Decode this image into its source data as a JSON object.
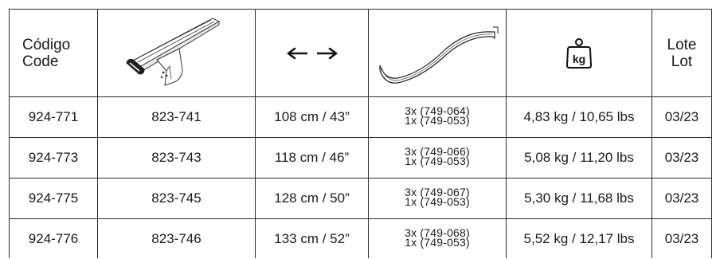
{
  "headers": {
    "code_line1": "Código",
    "code_line2": "Code",
    "bar_icon": "roof-bar-icon",
    "length_icon": "double-arrow-icon",
    "profile_icon": "rubber-profile-strip-icon",
    "weight_icon": "kg-weight-icon",
    "weight_unit": "kg",
    "lot_line1": "Lote",
    "lot_line2": "Lot"
  },
  "rows": [
    {
      "code": "924-771",
      "bar": "823-741",
      "length": "108 cm / 43”",
      "profile1": "3x (749-064)",
      "profile2": "1x (749-053)",
      "weight": "4,83 kg / 10,65 lbs",
      "lot": "03/23"
    },
    {
      "code": "924-773",
      "bar": "823-743",
      "length": "118 cm / 46”",
      "profile1": "3x (749-066)",
      "profile2": "1x (749-053)",
      "weight": "5,08 kg / 11,20 lbs",
      "lot": "03/23"
    },
    {
      "code": "924-775",
      "bar": "823-745",
      "length": "128 cm / 50”",
      "profile1": "3x (749-067)",
      "profile2": "1x (749-053)",
      "weight": "5,30 kg / 11,68 lbs",
      "lot": "03/23"
    },
    {
      "code": "924-776",
      "bar": "823-746",
      "length": "133 cm / 52”",
      "profile1": "3x (749-068)",
      "profile2": "1x (749-053)",
      "weight": "5,52 kg / 12,17 lbs",
      "lot": "03/23"
    }
  ]
}
